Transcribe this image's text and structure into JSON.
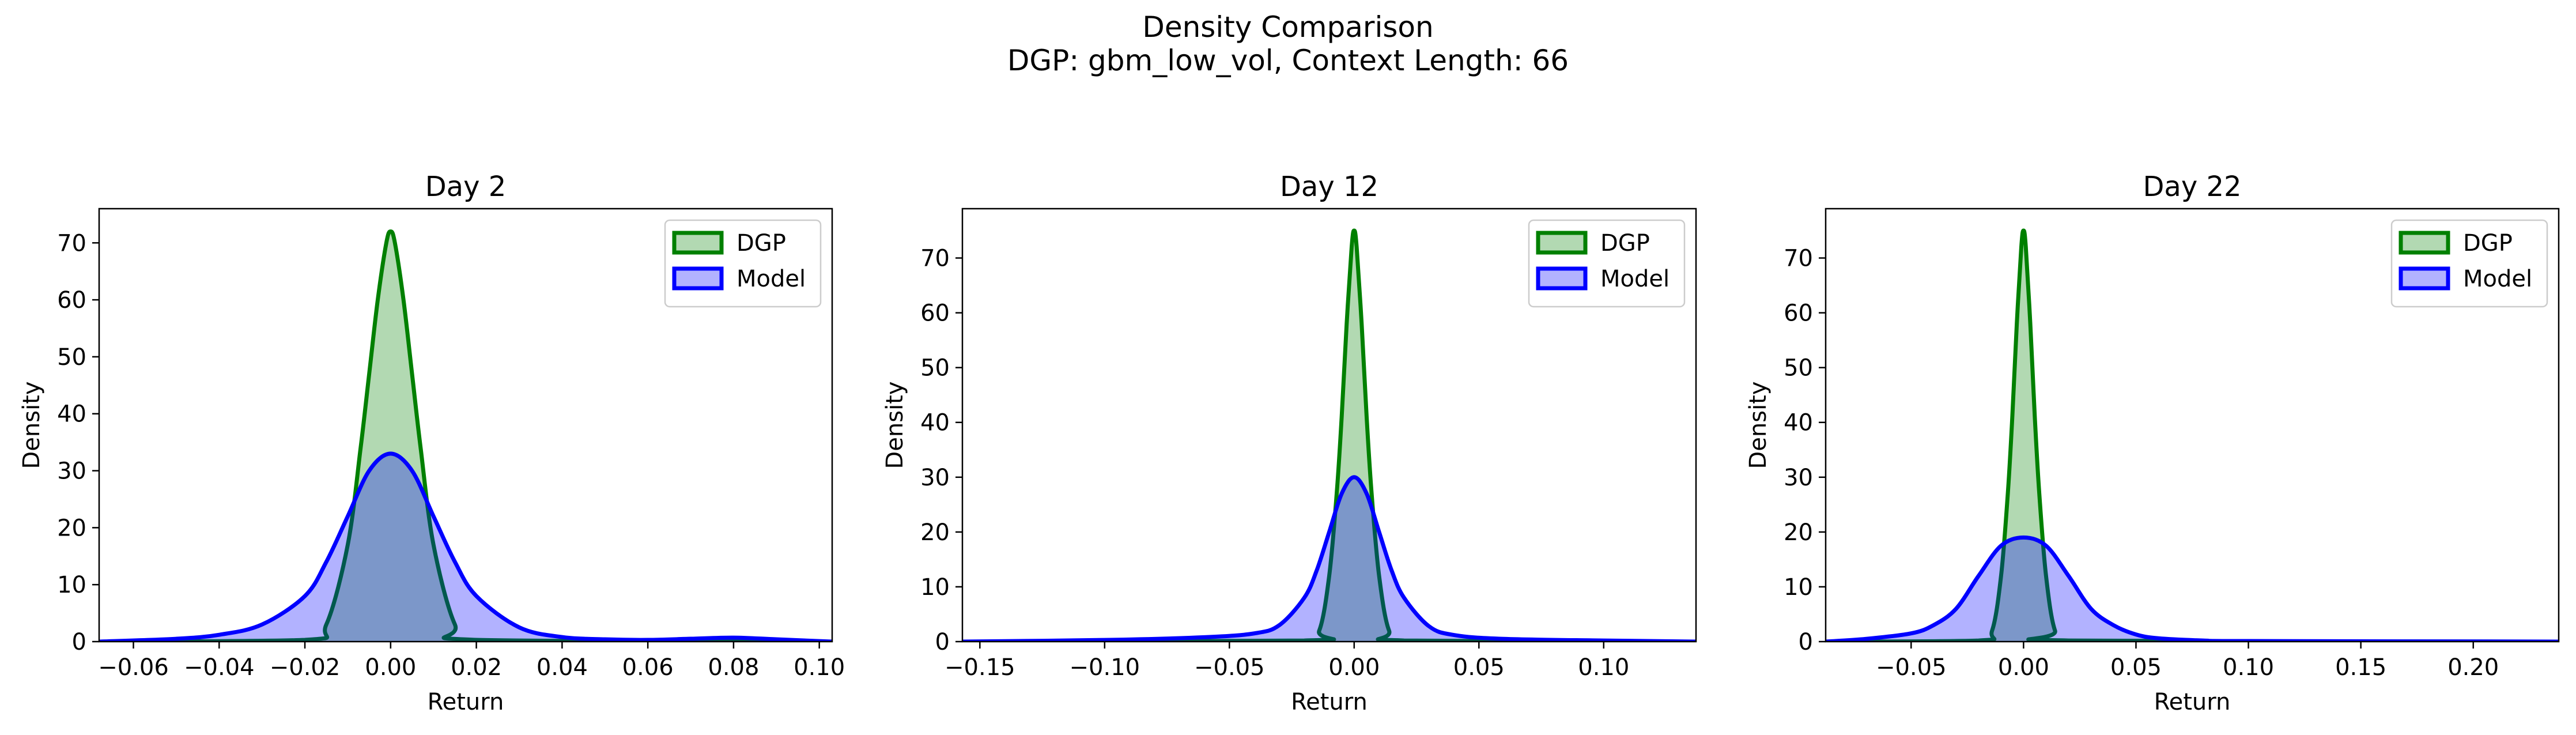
{
  "figure": {
    "title_line1": "Density Comparison",
    "title_line2": "DGP: gbm_low_vol, Context Length: 66"
  },
  "colors": {
    "dgp_line": "#008000",
    "dgp_fill": "#008000",
    "model_line": "#0000ff",
    "model_fill": "#0000ff"
  },
  "chart_data": [
    {
      "type": "area",
      "title": "Day 2",
      "xlabel": "Return",
      "ylabel": "Density",
      "xlim": [
        -0.068,
        0.103
      ],
      "ylim": [
        0,
        76
      ],
      "xticks": [
        -0.06,
        -0.04,
        -0.02,
        0.0,
        0.02,
        0.04,
        0.06,
        0.08,
        0.1
      ],
      "xtick_labels": [
        "−0.06",
        "−0.04",
        "−0.02",
        "0.00",
        "0.02",
        "0.04",
        "0.06",
        "0.08",
        "0.10"
      ],
      "yticks": [
        0,
        10,
        20,
        30,
        40,
        50,
        60,
        70
      ],
      "legend": {
        "position": "upper-right",
        "entries": [
          "DGP",
          "Model"
        ]
      },
      "series": [
        {
          "name": "DGP",
          "x": [
            -0.068,
            -0.02,
            -0.015,
            -0.01,
            -0.007,
            -0.005,
            -0.003,
            -0.001,
            0.0,
            0.001,
            0.003,
            0.005,
            0.007,
            0.01,
            0.015,
            0.02,
            0.103
          ],
          "y": [
            0,
            0.3,
            3,
            17,
            34,
            47,
            60,
            70,
            72,
            70,
            60,
            47,
            34,
            17,
            3,
            0.3,
            0
          ]
        },
        {
          "name": "Model",
          "x": [
            -0.068,
            -0.05,
            -0.04,
            -0.03,
            -0.02,
            -0.015,
            -0.01,
            -0.005,
            0.0,
            0.005,
            0.01,
            0.015,
            0.02,
            0.03,
            0.04,
            0.05,
            0.06,
            0.07,
            0.08,
            0.09,
            0.103
          ],
          "y": [
            0,
            0.5,
            1.2,
            3,
            8,
            14,
            22,
            30,
            33,
            30,
            22,
            14,
            8,
            2.5,
            0.8,
            0.4,
            0.3,
            0.5,
            0.7,
            0.4,
            0
          ]
        }
      ]
    },
    {
      "type": "area",
      "title": "Day 12",
      "xlabel": "Return",
      "ylabel": "Density",
      "xlim": [
        -0.157,
        0.137
      ],
      "ylim": [
        0,
        79
      ],
      "xticks": [
        -0.15,
        -0.1,
        -0.05,
        0.0,
        0.05,
        0.1
      ],
      "xtick_labels": [
        "−0.15",
        "−0.10",
        "−0.05",
        "0.00",
        "0.05",
        "0.10"
      ],
      "yticks": [
        0,
        10,
        20,
        30,
        40,
        50,
        60,
        70
      ],
      "legend": {
        "position": "upper-right",
        "entries": [
          "DGP",
          "Model"
        ]
      },
      "series": [
        {
          "name": "DGP",
          "x": [
            -0.157,
            -0.02,
            -0.014,
            -0.01,
            -0.007,
            -0.005,
            -0.003,
            -0.001,
            0.0,
            0.001,
            0.003,
            0.005,
            0.007,
            0.01,
            0.014,
            0.02,
            0.137
          ],
          "y": [
            0,
            0.2,
            2,
            12,
            27,
            41,
            58,
            72,
            75,
            72,
            58,
            41,
            27,
            12,
            2,
            0.2,
            0
          ]
        },
        {
          "name": "Model",
          "x": [
            -0.157,
            -0.1,
            -0.06,
            -0.04,
            -0.03,
            -0.02,
            -0.015,
            -0.01,
            -0.005,
            0.0,
            0.005,
            0.01,
            0.015,
            0.02,
            0.03,
            0.04,
            0.06,
            0.1,
            0.137
          ],
          "y": [
            0,
            0.3,
            0.8,
            1.5,
            3,
            8,
            13,
            20,
            27,
            30,
            27,
            20,
            13,
            8,
            2.8,
            1.2,
            0.5,
            0.2,
            0
          ]
        }
      ]
    },
    {
      "type": "area",
      "title": "Day 22",
      "xlabel": "Return",
      "ylabel": "Density",
      "xlim": [
        -0.088,
        0.238
      ],
      "ylim": [
        0,
        79
      ],
      "xticks": [
        -0.05,
        0.0,
        0.05,
        0.1,
        0.15,
        0.2
      ],
      "xtick_labels": [
        "−0.05",
        "0.00",
        "0.05",
        "0.10",
        "0.15",
        "0.20"
      ],
      "yticks": [
        0,
        10,
        20,
        30,
        40,
        50,
        60,
        70
      ],
      "legend": {
        "position": "upper-right",
        "entries": [
          "DGP",
          "Model"
        ]
      },
      "series": [
        {
          "name": "DGP",
          "x": [
            -0.088,
            -0.02,
            -0.014,
            -0.01,
            -0.007,
            -0.005,
            -0.003,
            -0.001,
            0.0,
            0.001,
            0.003,
            0.005,
            0.007,
            0.01,
            0.014,
            0.02,
            0.238
          ],
          "y": [
            0,
            0.2,
            2,
            12,
            27,
            41,
            58,
            72,
            75,
            72,
            58,
            41,
            27,
            12,
            2,
            0.2,
            0
          ]
        },
        {
          "name": "Model",
          "x": [
            -0.088,
            -0.07,
            -0.05,
            -0.04,
            -0.03,
            -0.02,
            -0.01,
            0.0,
            0.01,
            0.02,
            0.03,
            0.04,
            0.05,
            0.06,
            0.08,
            0.1,
            0.238
          ],
          "y": [
            0,
            0.5,
            1.5,
            3,
            6,
            12,
            17.5,
            19,
            17.5,
            12,
            6,
            3,
            1.3,
            0.6,
            0.2,
            0.1,
            0
          ]
        }
      ]
    }
  ]
}
